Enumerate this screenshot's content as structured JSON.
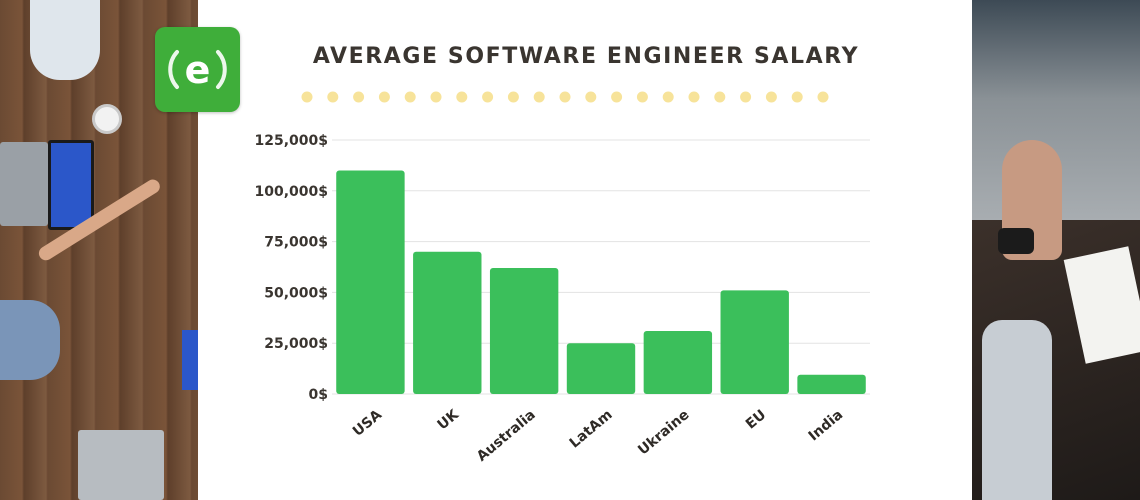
{
  "title": "AVERAGE SOFTWARE ENGINEER SALARY",
  "logo": {
    "letter": "e",
    "color": "#3fae3a",
    "icon": "e-logo-icon"
  },
  "colors": {
    "bar": "#3bbf5b",
    "dots": "#f7e39a",
    "grid": "#e3e3e3",
    "text": "#3a3530"
  },
  "chart_data": {
    "type": "bar",
    "title": "AVERAGE SOFTWARE ENGINEER SALARY",
    "xlabel": "",
    "ylabel": "",
    "categories": [
      "USA",
      "UK",
      "Australia",
      "LatAm",
      "Ukraine",
      "EU",
      "India"
    ],
    "values": [
      110000,
      70000,
      62000,
      25000,
      31000,
      51000,
      9500
    ],
    "ylim": [
      0,
      125000
    ],
    "yticks": [
      0,
      25000,
      50000,
      75000,
      100000,
      125000
    ],
    "ytick_labels": [
      "0$",
      "25,000$",
      "50,000$",
      "75,000$",
      "100,000$",
      "125,000$"
    ],
    "grid": true,
    "legend": "none"
  }
}
